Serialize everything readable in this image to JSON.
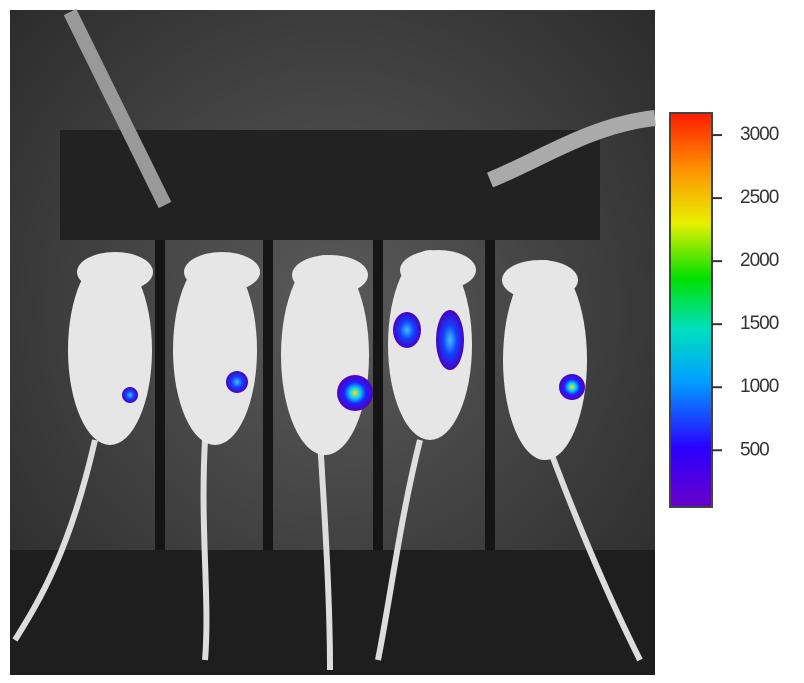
{
  "colorbar": {
    "lim": [
      50,
      3175
    ],
    "ticks": [
      500,
      1000,
      1500,
      2000,
      2500,
      3000
    ]
  }
}
